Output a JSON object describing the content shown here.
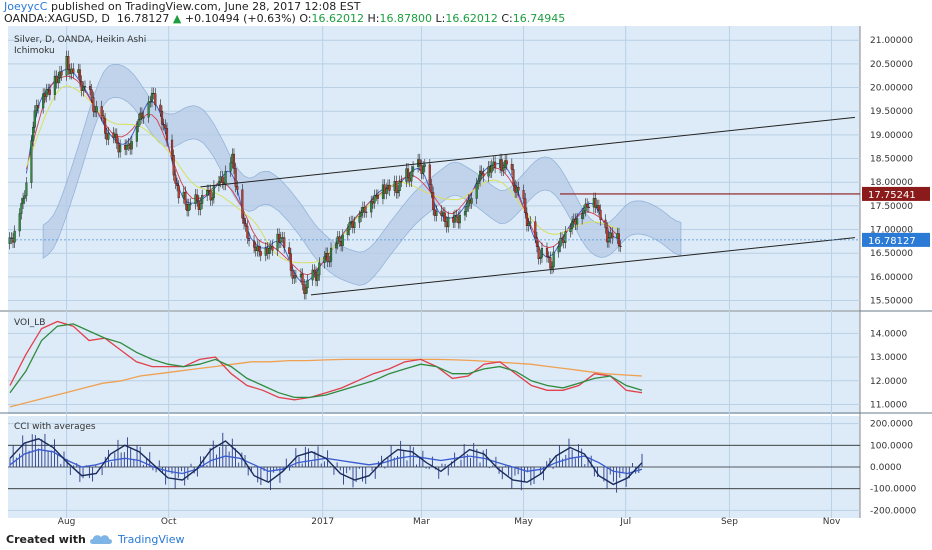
{
  "header": {
    "author": "JoeyycC",
    "published_text": " published on TradingView.com, June 28, 2017 12:08 EST",
    "symbol": "OANDA:XAGUSD, D",
    "price": "16.78127",
    "change_arrow": "▲",
    "change": "+0.10494 (+0.63%)",
    "o_label": "O:",
    "o_value": "16.62012",
    "h_label": "H:",
    "h_value": "16.87800",
    "l_label": "L:",
    "l_value": "16.62012",
    "c_label": "C:",
    "c_value": "16.74945"
  },
  "panes": {
    "main_title": "Silver, D, OANDA, Heikin Ashi",
    "main_indicator": "Ichimoku",
    "voi_title": "VOI_LB",
    "cci_title": "CCI with averages"
  },
  "footer": {
    "created_with": "Created with",
    "brand": "TradingView"
  },
  "colors": {
    "background": "#dcebf7",
    "grid": "#b9d0e6",
    "candle_up": "#2e8b3e",
    "candle_down": "#c0392b",
    "cloud": "#b7cce8",
    "resistance_line": "#8b1a1a",
    "current_price_label": "#2a7ad6",
    "voi_red": "#e2404a",
    "voi_green": "#2e8b3e",
    "voi_orange": "#f0a050",
    "cci_dark": "#1a2a5a",
    "cci_blue": "#3a5ad0"
  },
  "chart_data": [
    {
      "type": "candlestick",
      "title": "Silver, D, OANDA, Heikin Ashi",
      "indicator": "Ichimoku",
      "x_ticks": [
        "Aug",
        "Oct",
        "2017",
        "Mar",
        "May",
        "Jul",
        "Sep",
        "Nov"
      ],
      "y_ticks": [
        "21.00000",
        "20.50000",
        "20.00000",
        "19.50000",
        "19.00000",
        "18.50000",
        "18.00000",
        "17.50000",
        "17.00000",
        "16.50000",
        "16.00000",
        "15.50000"
      ],
      "ylim": [
        15.3,
        21.3
      ],
      "series": [
        {
          "name": "price",
          "x": [
            "2016-06-28",
            "2016-07-06",
            "2016-07-14",
            "2016-07-22",
            "2016-08-01",
            "2016-08-10",
            "2016-08-18",
            "2016-08-26",
            "2016-09-06",
            "2016-09-14",
            "2016-09-22",
            "2016-09-30",
            "2016-10-07",
            "2016-10-14",
            "2016-10-24",
            "2016-11-01",
            "2016-11-08",
            "2016-11-15",
            "2016-11-22",
            "2016-11-30",
            "2016-12-07",
            "2016-12-15",
            "2016-12-22",
            "2017-01-03",
            "2017-01-11",
            "2017-01-19",
            "2017-01-27",
            "2017-02-06",
            "2017-02-14",
            "2017-02-22",
            "2017-03-02",
            "2017-03-10",
            "2017-03-20",
            "2017-03-28",
            "2017-04-05",
            "2017-04-13",
            "2017-04-21",
            "2017-05-01",
            "2017-05-09",
            "2017-05-17",
            "2017-05-25",
            "2017-06-02",
            "2017-06-12",
            "2017-06-20",
            "2017-06-28"
          ],
          "values": [
            16.7,
            17.6,
            19.7,
            20.0,
            20.5,
            20.1,
            19.6,
            19.0,
            18.7,
            19.4,
            19.9,
            19.0,
            17.7,
            17.5,
            17.7,
            18.0,
            18.5,
            17.1,
            16.6,
            16.6,
            16.9,
            16.0,
            15.8,
            16.4,
            16.8,
            17.2,
            17.5,
            17.9,
            17.9,
            18.2,
            18.4,
            17.3,
            17.2,
            17.5,
            18.2,
            18.4,
            18.4,
            17.5,
            16.6,
            16.3,
            16.9,
            17.3,
            17.7,
            16.9,
            16.78
          ]
        }
      ],
      "horizontal_lines": [
        {
          "label": "17.75241",
          "value": 17.75241
        },
        {
          "label": "16.78127",
          "value": 16.78127
        }
      ],
      "trendlines": [
        {
          "x": [
            "2016-12-25",
            "2017-11-15"
          ],
          "y": [
            15.62,
            16.83
          ]
        },
        {
          "x": [
            "2016-10-20",
            "2017-11-15"
          ],
          "y": [
            17.9,
            19.37
          ]
        }
      ]
    },
    {
      "type": "line",
      "title": "VOI_LB",
      "y_ticks": [
        "14.0000",
        "13.0000",
        "12.0000",
        "11.0000"
      ],
      "ylim": [
        10.6,
        14.9
      ],
      "series": [
        {
          "name": "red",
          "values": [
            11.8,
            13.1,
            14.2,
            14.5,
            14.3,
            13.7,
            13.8,
            13.3,
            12.8,
            12.6,
            12.6,
            12.6,
            12.9,
            13.0,
            12.3,
            11.8,
            11.6,
            11.3,
            11.2,
            11.3,
            11.5,
            11.7,
            12.0,
            12.3,
            12.5,
            12.8,
            12.9,
            12.6,
            12.1,
            12.2,
            12.7,
            12.8,
            12.3,
            11.8,
            11.6,
            11.6,
            11.8,
            12.3,
            12.2,
            11.6,
            11.5
          ]
        },
        {
          "name": "green",
          "values": [
            11.5,
            12.4,
            13.7,
            14.3,
            14.4,
            14.1,
            13.8,
            13.6,
            13.2,
            12.9,
            12.7,
            12.6,
            12.7,
            12.9,
            12.6,
            12.1,
            11.8,
            11.5,
            11.3,
            11.3,
            11.4,
            11.6,
            11.8,
            12.0,
            12.3,
            12.5,
            12.7,
            12.6,
            12.3,
            12.3,
            12.5,
            12.6,
            12.4,
            12.0,
            11.8,
            11.7,
            11.9,
            12.1,
            12.2,
            11.8,
            11.6
          ]
        },
        {
          "name": "orange",
          "values": [
            10.9,
            11.1,
            11.3,
            11.5,
            11.7,
            11.9,
            12.0,
            12.2,
            12.3,
            12.4,
            12.5,
            12.6,
            12.7,
            12.8,
            12.8,
            12.85,
            12.85,
            12.88,
            12.9,
            12.9,
            12.9,
            12.9,
            12.9,
            12.9,
            12.88,
            12.85,
            12.8,
            12.75,
            12.7,
            12.6,
            12.5,
            12.4,
            12.3,
            12.25,
            12.2
          ]
        }
      ]
    },
    {
      "type": "line",
      "title": "CCI with averages",
      "y_ticks": [
        "200.0000",
        "100.0000",
        "0.0000",
        "-100.0000",
        "-200.0000"
      ],
      "ylim": [
        -235,
        235
      ],
      "reference_lines": [
        100,
        0,
        -100
      ],
      "series": [
        {
          "name": "dark",
          "values": [
            40,
            110,
            130,
            90,
            20,
            -40,
            -30,
            60,
            100,
            70,
            10,
            -50,
            -60,
            -10,
            80,
            120,
            60,
            -40,
            -70,
            -20,
            50,
            70,
            40,
            -30,
            -60,
            -40,
            30,
            80,
            70,
            20,
            -20,
            30,
            80,
            60,
            -10,
            -60,
            -70,
            -30,
            50,
            90,
            60,
            -40,
            -80,
            -50,
            20
          ]
        },
        {
          "name": "blue",
          "values": [
            10,
            60,
            80,
            70,
            30,
            0,
            10,
            30,
            40,
            30,
            0,
            -20,
            -30,
            -10,
            30,
            50,
            40,
            10,
            -20,
            -10,
            20,
            30,
            40,
            30,
            20,
            10,
            20,
            40,
            50,
            40,
            30,
            40,
            50,
            40,
            20,
            0,
            -20,
            -10,
            20,
            40,
            50,
            20,
            -20,
            -30,
            -10
          ]
        }
      ]
    }
  ]
}
